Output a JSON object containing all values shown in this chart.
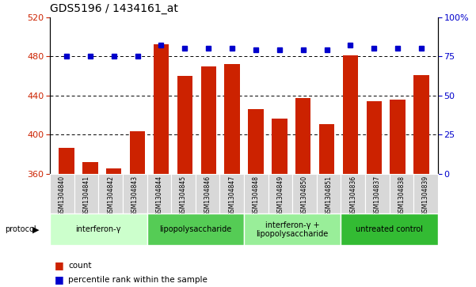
{
  "title": "GDS5196 / 1434161_at",
  "samples": [
    "GSM1304840",
    "GSM1304841",
    "GSM1304842",
    "GSM1304843",
    "GSM1304844",
    "GSM1304845",
    "GSM1304846",
    "GSM1304847",
    "GSM1304848",
    "GSM1304849",
    "GSM1304850",
    "GSM1304851",
    "GSM1304836",
    "GSM1304837",
    "GSM1304838",
    "GSM1304839"
  ],
  "counts": [
    386,
    372,
    365,
    403,
    492,
    460,
    470,
    472,
    426,
    416,
    437,
    411,
    481,
    434,
    436,
    461
  ],
  "percentile_ranks": [
    75,
    75,
    75,
    75,
    82,
    80,
    80,
    80,
    79,
    79,
    79,
    79,
    82,
    80,
    80,
    80
  ],
  "groups": [
    {
      "label": "interferon-γ",
      "start": 0,
      "end": 4,
      "color": "#ccffcc"
    },
    {
      "label": "lipopolysaccharide",
      "start": 4,
      "end": 8,
      "color": "#55cc55"
    },
    {
      "label": "interferon-γ +\nlipopolysaccharide",
      "start": 8,
      "end": 12,
      "color": "#99ee99"
    },
    {
      "label": "untreated control",
      "start": 12,
      "end": 16,
      "color": "#33bb33"
    }
  ],
  "bar_color": "#cc2200",
  "dot_color": "#0000cc",
  "ylim_left": [
    360,
    520
  ],
  "yticks_left": [
    360,
    400,
    440,
    480,
    520
  ],
  "ylim_right": [
    0,
    100
  ],
  "yticks_right": [
    0,
    25,
    50,
    75,
    100
  ],
  "grid_values": [
    400,
    440,
    480
  ],
  "bar_width": 0.65
}
